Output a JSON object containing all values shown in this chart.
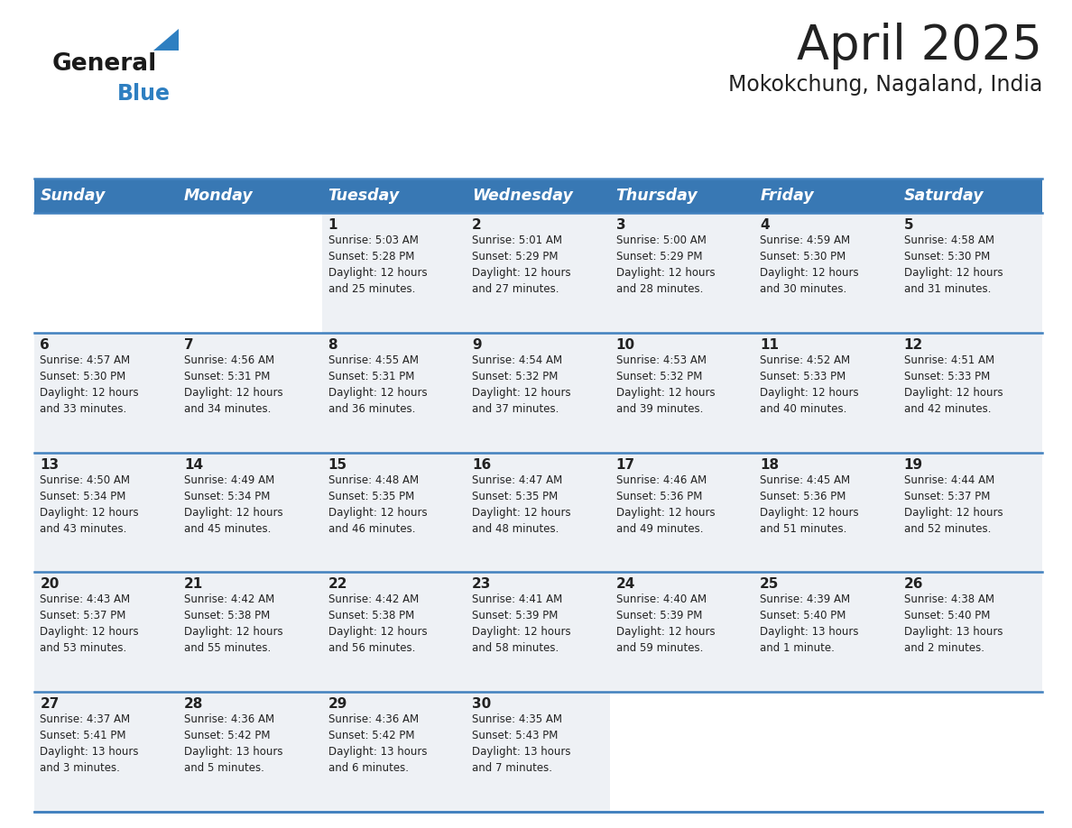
{
  "title": "April 2025",
  "subtitle": "Mokokchung, Nagaland, India",
  "header_bg_color": "#3878b4",
  "header_text_color": "#ffffff",
  "day_names": [
    "Sunday",
    "Monday",
    "Tuesday",
    "Wednesday",
    "Thursday",
    "Friday",
    "Saturday"
  ],
  "bg_color": "#ffffff",
  "cell_bg_filled": "#eef1f5",
  "cell_bg_empty": "#ffffff",
  "divider_color": "#4080be",
  "text_color": "#222222",
  "title_fontsize": 38,
  "subtitle_fontsize": 17,
  "day_header_fontsize": 12.5,
  "date_fontsize": 11,
  "info_fontsize": 8.5,
  "logo_color1": "#1a1a1a",
  "logo_color2": "#2e7fc1",
  "logo_triangle_color": "#2e7fc1",
  "calendar_data": [
    [
      {
        "day": "",
        "info": ""
      },
      {
        "day": "",
        "info": ""
      },
      {
        "day": "1",
        "info": "Sunrise: 5:03 AM\nSunset: 5:28 PM\nDaylight: 12 hours\nand 25 minutes."
      },
      {
        "day": "2",
        "info": "Sunrise: 5:01 AM\nSunset: 5:29 PM\nDaylight: 12 hours\nand 27 minutes."
      },
      {
        "day": "3",
        "info": "Sunrise: 5:00 AM\nSunset: 5:29 PM\nDaylight: 12 hours\nand 28 minutes."
      },
      {
        "day": "4",
        "info": "Sunrise: 4:59 AM\nSunset: 5:30 PM\nDaylight: 12 hours\nand 30 minutes."
      },
      {
        "day": "5",
        "info": "Sunrise: 4:58 AM\nSunset: 5:30 PM\nDaylight: 12 hours\nand 31 minutes."
      }
    ],
    [
      {
        "day": "6",
        "info": "Sunrise: 4:57 AM\nSunset: 5:30 PM\nDaylight: 12 hours\nand 33 minutes."
      },
      {
        "day": "7",
        "info": "Sunrise: 4:56 AM\nSunset: 5:31 PM\nDaylight: 12 hours\nand 34 minutes."
      },
      {
        "day": "8",
        "info": "Sunrise: 4:55 AM\nSunset: 5:31 PM\nDaylight: 12 hours\nand 36 minutes."
      },
      {
        "day": "9",
        "info": "Sunrise: 4:54 AM\nSunset: 5:32 PM\nDaylight: 12 hours\nand 37 minutes."
      },
      {
        "day": "10",
        "info": "Sunrise: 4:53 AM\nSunset: 5:32 PM\nDaylight: 12 hours\nand 39 minutes."
      },
      {
        "day": "11",
        "info": "Sunrise: 4:52 AM\nSunset: 5:33 PM\nDaylight: 12 hours\nand 40 minutes."
      },
      {
        "day": "12",
        "info": "Sunrise: 4:51 AM\nSunset: 5:33 PM\nDaylight: 12 hours\nand 42 minutes."
      }
    ],
    [
      {
        "day": "13",
        "info": "Sunrise: 4:50 AM\nSunset: 5:34 PM\nDaylight: 12 hours\nand 43 minutes."
      },
      {
        "day": "14",
        "info": "Sunrise: 4:49 AM\nSunset: 5:34 PM\nDaylight: 12 hours\nand 45 minutes."
      },
      {
        "day": "15",
        "info": "Sunrise: 4:48 AM\nSunset: 5:35 PM\nDaylight: 12 hours\nand 46 minutes."
      },
      {
        "day": "16",
        "info": "Sunrise: 4:47 AM\nSunset: 5:35 PM\nDaylight: 12 hours\nand 48 minutes."
      },
      {
        "day": "17",
        "info": "Sunrise: 4:46 AM\nSunset: 5:36 PM\nDaylight: 12 hours\nand 49 minutes."
      },
      {
        "day": "18",
        "info": "Sunrise: 4:45 AM\nSunset: 5:36 PM\nDaylight: 12 hours\nand 51 minutes."
      },
      {
        "day": "19",
        "info": "Sunrise: 4:44 AM\nSunset: 5:37 PM\nDaylight: 12 hours\nand 52 minutes."
      }
    ],
    [
      {
        "day": "20",
        "info": "Sunrise: 4:43 AM\nSunset: 5:37 PM\nDaylight: 12 hours\nand 53 minutes."
      },
      {
        "day": "21",
        "info": "Sunrise: 4:42 AM\nSunset: 5:38 PM\nDaylight: 12 hours\nand 55 minutes."
      },
      {
        "day": "22",
        "info": "Sunrise: 4:42 AM\nSunset: 5:38 PM\nDaylight: 12 hours\nand 56 minutes."
      },
      {
        "day": "23",
        "info": "Sunrise: 4:41 AM\nSunset: 5:39 PM\nDaylight: 12 hours\nand 58 minutes."
      },
      {
        "day": "24",
        "info": "Sunrise: 4:40 AM\nSunset: 5:39 PM\nDaylight: 12 hours\nand 59 minutes."
      },
      {
        "day": "25",
        "info": "Sunrise: 4:39 AM\nSunset: 5:40 PM\nDaylight: 13 hours\nand 1 minute."
      },
      {
        "day": "26",
        "info": "Sunrise: 4:38 AM\nSunset: 5:40 PM\nDaylight: 13 hours\nand 2 minutes."
      }
    ],
    [
      {
        "day": "27",
        "info": "Sunrise: 4:37 AM\nSunset: 5:41 PM\nDaylight: 13 hours\nand 3 minutes."
      },
      {
        "day": "28",
        "info": "Sunrise: 4:36 AM\nSunset: 5:42 PM\nDaylight: 13 hours\nand 5 minutes."
      },
      {
        "day": "29",
        "info": "Sunrise: 4:36 AM\nSunset: 5:42 PM\nDaylight: 13 hours\nand 6 minutes."
      },
      {
        "day": "30",
        "info": "Sunrise: 4:35 AM\nSunset: 5:43 PM\nDaylight: 13 hours\nand 7 minutes."
      },
      {
        "day": "",
        "info": ""
      },
      {
        "day": "",
        "info": ""
      },
      {
        "day": "",
        "info": ""
      }
    ]
  ]
}
